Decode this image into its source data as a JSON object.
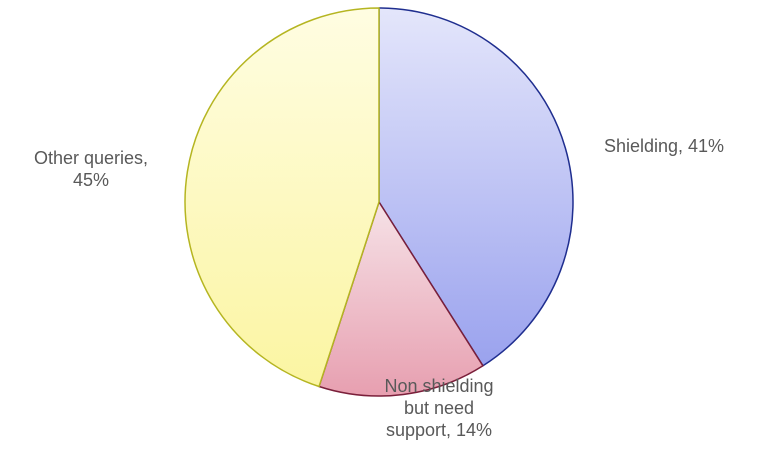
{
  "chart_data": {
    "type": "pie",
    "slices": [
      {
        "label_lines": [
          "Shielding, 41%"
        ],
        "category": "Shielding",
        "value": 41,
        "gradient_top": "#e4e6fb",
        "gradient_bottom": "#9aa2ee",
        "edge_color": "#1f2e8f"
      },
      {
        "label_lines": [
          "Non shielding",
          "but need",
          "support, 14%"
        ],
        "category": "Non shielding but need support",
        "value": 14,
        "gradient_top": "#f6e2e7",
        "gradient_bottom": "#e79fb0",
        "edge_color": "#7a1f3a"
      },
      {
        "label_lines": [
          "Other queries,",
          "45%"
        ],
        "category": "Other queries",
        "value": 45,
        "gradient_top": "#fffde2",
        "gradient_bottom": "#fbf5a2",
        "edge_color": "#b5b521"
      }
    ],
    "start_angle": "12 o'clock",
    "direction": "clockwise",
    "legend": "none"
  }
}
